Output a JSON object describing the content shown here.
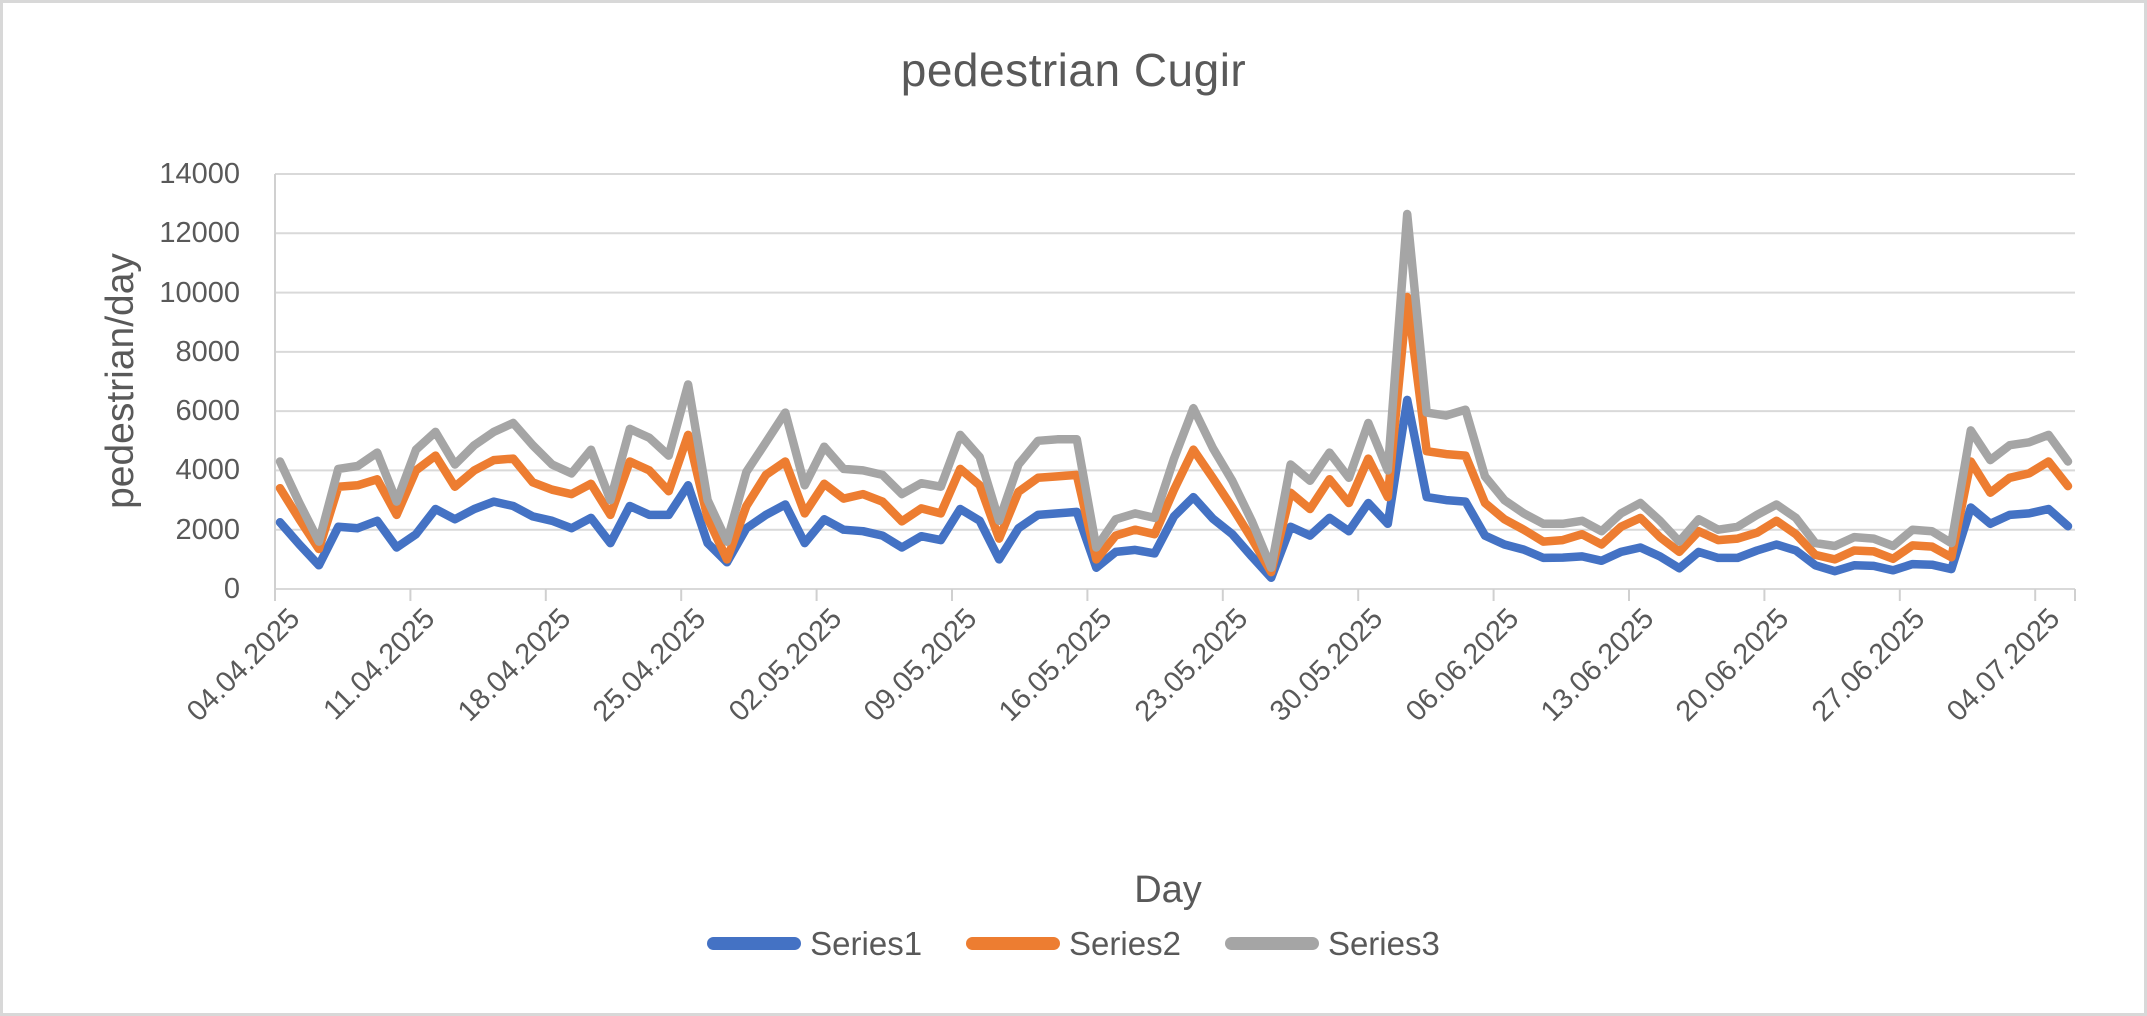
{
  "title": "pedestrian Cugir",
  "chart_data": {
    "type": "line",
    "title": "pedestrian Cugir",
    "xlabel": "Day",
    "ylabel": "pedestrian/day",
    "ylim": [
      0,
      14000
    ],
    "y_ticks": [
      0,
      2000,
      4000,
      6000,
      8000,
      10000,
      12000,
      14000
    ],
    "grid": "horizontal",
    "grid_color": "#D9D9D9",
    "axis_color": "#D0D0D0",
    "text_color": "#595959",
    "legend_position": "bottom",
    "x_tick_interval_days": 7,
    "x_tick_labels": [
      "04.04.2025",
      "11.04.2025",
      "18.04.2025",
      "25.04.2025",
      "02.05.2025",
      "09.05.2025",
      "16.05.2025",
      "23.05.2025",
      "30.05.2025",
      "06.06.2025",
      "13.06.2025",
      "20.06.2025",
      "27.06.2025",
      "04.07.2025"
    ],
    "dates": [
      "04.04.2025",
      "05.04.2025",
      "06.04.2025",
      "07.04.2025",
      "08.04.2025",
      "09.04.2025",
      "10.04.2025",
      "11.04.2025",
      "12.04.2025",
      "13.04.2025",
      "14.04.2025",
      "15.04.2025",
      "16.04.2025",
      "17.04.2025",
      "18.04.2025",
      "19.04.2025",
      "20.04.2025",
      "21.04.2025",
      "22.04.2025",
      "23.04.2025",
      "24.04.2025",
      "25.04.2025",
      "26.04.2025",
      "27.04.2025",
      "28.04.2025",
      "29.04.2025",
      "30.04.2025",
      "01.05.2025",
      "02.05.2025",
      "03.05.2025",
      "04.05.2025",
      "05.05.2025",
      "06.05.2025",
      "07.05.2025",
      "08.05.2025",
      "09.05.2025",
      "10.05.2025",
      "11.05.2025",
      "12.05.2025",
      "13.05.2025",
      "14.05.2025",
      "15.05.2025",
      "16.05.2025",
      "17.05.2025",
      "18.05.2025",
      "19.05.2025",
      "20.05.2025",
      "21.05.2025",
      "22.05.2025",
      "23.05.2025",
      "24.05.2025",
      "25.05.2025",
      "26.05.2025",
      "27.05.2025",
      "28.05.2025",
      "29.05.2025",
      "30.05.2025",
      "31.05.2025",
      "01.06.2025",
      "02.06.2025",
      "03.06.2025",
      "04.06.2025",
      "05.06.2025",
      "06.06.2025",
      "07.06.2025",
      "08.06.2025",
      "09.06.2025",
      "10.06.2025",
      "11.06.2025",
      "12.06.2025",
      "13.06.2025",
      "14.06.2025",
      "15.06.2025",
      "16.06.2025",
      "17.06.2025",
      "18.06.2025",
      "19.06.2025",
      "20.06.2025",
      "21.06.2025",
      "22.06.2025",
      "23.06.2025",
      "24.06.2025",
      "25.06.2025",
      "26.06.2025",
      "27.06.2025",
      "28.06.2025",
      "29.06.2025",
      "30.06.2025",
      "01.07.2025",
      "02.07.2025",
      "03.07.2025",
      "04.07.2025",
      "05.07.2025"
    ],
    "series": [
      {
        "name": "Series1",
        "color": "#4472C4",
        "values": [
          2250,
          1500,
          800,
          2100,
          2050,
          2300,
          1400,
          1850,
          2700,
          2350,
          2700,
          2950,
          2800,
          2450,
          2300,
          2050,
          2400,
          1550,
          2800,
          2500,
          2500,
          3500,
          1550,
          900,
          2050,
          2500,
          2850,
          1550,
          2350,
          2000,
          1950,
          1800,
          1400,
          1780,
          1650,
          2700,
          2300,
          1000,
          2050,
          2500,
          2550,
          2600,
          720,
          1250,
          1320,
          1200,
          2450,
          3100,
          2370,
          1850,
          1100,
          380,
          2100,
          1800,
          2400,
          1950,
          2900,
          2200,
          6380,
          3100,
          3000,
          2950,
          1800,
          1500,
          1330,
          1050,
          1060,
          1100,
          950,
          1250,
          1400,
          1100,
          700,
          1250,
          1050,
          1050,
          1300,
          1500,
          1300,
          800,
          600,
          800,
          780,
          630,
          840,
          820,
          670,
          2750,
          2200,
          2500,
          2550,
          2700,
          2120
        ]
      },
      {
        "name": "Series2",
        "color": "#ED7D31",
        "values": [
          3400,
          2350,
          1350,
          3450,
          3500,
          3700,
          2500,
          4000,
          4500,
          3450,
          4000,
          4350,
          4400,
          3600,
          3350,
          3200,
          3550,
          2500,
          4300,
          4000,
          3300,
          5200,
          2400,
          1000,
          2800,
          3850,
          4300,
          2550,
          3550,
          3050,
          3200,
          2950,
          2280,
          2720,
          2550,
          4050,
          3500,
          1700,
          3280,
          3750,
          3800,
          3850,
          1000,
          1800,
          2000,
          1850,
          3350,
          4700,
          3740,
          2750,
          1700,
          570,
          3250,
          2700,
          3700,
          2900,
          4400,
          3100,
          9850,
          4650,
          4550,
          4500,
          2900,
          2350,
          2000,
          1600,
          1650,
          1850,
          1500,
          2100,
          2400,
          1750,
          1250,
          1950,
          1650,
          1700,
          1900,
          2300,
          1850,
          1150,
          1000,
          1300,
          1270,
          1020,
          1470,
          1430,
          1070,
          4300,
          3250,
          3750,
          3900,
          4300,
          3470
        ]
      },
      {
        "name": "Series3",
        "color": "#A5A5A5",
        "values": [
          4300,
          2900,
          1600,
          4050,
          4150,
          4600,
          2950,
          4700,
          5300,
          4200,
          4850,
          5300,
          5600,
          4850,
          4200,
          3900,
          4700,
          3000,
          5400,
          5100,
          4500,
          6900,
          3000,
          1600,
          3950,
          4950,
          5950,
          3500,
          4800,
          4050,
          4000,
          3850,
          3200,
          3570,
          3450,
          5200,
          4450,
          2300,
          4200,
          5000,
          5050,
          5050,
          1400,
          2350,
          2550,
          2400,
          4400,
          6100,
          4750,
          3650,
          2300,
          720,
          4200,
          3650,
          4600,
          3750,
          5600,
          4000,
          12650,
          5950,
          5850,
          6050,
          3800,
          3000,
          2550,
          2200,
          2200,
          2300,
          1950,
          2550,
          2900,
          2300,
          1600,
          2350,
          2000,
          2100,
          2500,
          2850,
          2400,
          1550,
          1450,
          1750,
          1700,
          1450,
          2000,
          1950,
          1550,
          5350,
          4350,
          4850,
          4950,
          5200,
          4300
        ]
      }
    ]
  }
}
